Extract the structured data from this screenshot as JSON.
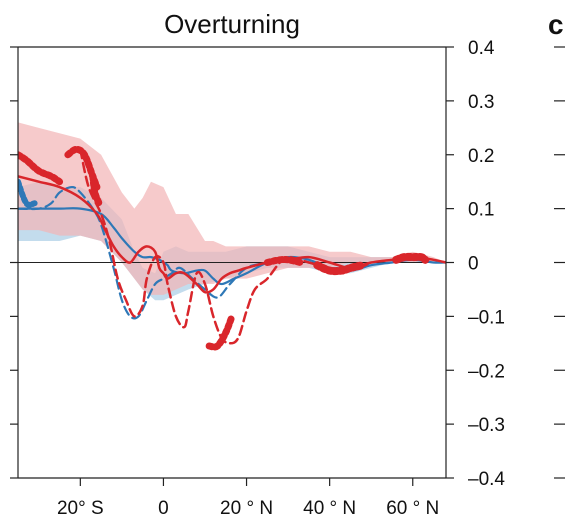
{
  "chart_data": {
    "type": "line",
    "title": "Overturning",
    "xlabel": "",
    "ylabel": "",
    "xlim": [
      -35,
      68
    ],
    "ylim": [
      -0.4,
      0.4
    ],
    "x_ticks": [
      {
        "value": -20,
        "label": "20° S"
      },
      {
        "value": 0,
        "label": "0"
      },
      {
        "value": 20,
        "label": "20 ° N"
      },
      {
        "value": 40,
        "label": "40 ° N"
      },
      {
        "value": 60,
        "label": "60 ° N"
      }
    ],
    "y_ticks": [
      {
        "value": 0.4,
        "label": "0.4"
      },
      {
        "value": 0.3,
        "label": "0.3"
      },
      {
        "value": 0.2,
        "label": "0.2"
      },
      {
        "value": 0.1,
        "label": "0.1"
      },
      {
        "value": 0,
        "label": "0"
      },
      {
        "value": -0.1,
        "label": "–0.1"
      },
      {
        "value": -0.2,
        "label": "–0.2"
      },
      {
        "value": -0.3,
        "label": "–0.3"
      },
      {
        "value": -0.4,
        "label": "–0.4"
      }
    ],
    "grid": false,
    "legend": false,
    "colors": {
      "red": "#d9262b",
      "blue": "#2e78b7",
      "red_band": "#f2b5b7",
      "blue_band": "#b9d6ea"
    },
    "bands": [
      {
        "color": "blue",
        "x": [
          -35,
          -30,
          -25,
          -20,
          -15,
          -10,
          -7,
          -5,
          -2,
          0,
          3,
          6,
          10,
          15,
          20,
          25,
          30,
          35,
          40,
          45,
          50,
          55,
          60,
          65,
          68
        ],
        "upper": [
          0.14,
          0.15,
          0.14,
          0.14,
          0.12,
          0.08,
          0.02,
          -0.01,
          -0.02,
          0.02,
          0.03,
          0.02,
          0.02,
          0.02,
          0.03,
          0.03,
          0.03,
          0.02,
          0.01,
          0.01,
          0.01,
          0.01,
          0.01,
          0.0,
          0.0
        ],
        "lower": [
          0.04,
          0.04,
          0.04,
          0.05,
          0.04,
          0.0,
          -0.03,
          -0.05,
          -0.07,
          -0.07,
          -0.06,
          -0.05,
          -0.04,
          -0.03,
          -0.02,
          -0.01,
          -0.01,
          -0.01,
          -0.02,
          -0.02,
          -0.01,
          0.0,
          0.0,
          0.0,
          0.0
        ]
      },
      {
        "color": "red",
        "x": [
          -35,
          -30,
          -25,
          -20,
          -15,
          -10,
          -7,
          -5,
          -3,
          0,
          3,
          6,
          10,
          12,
          15,
          20,
          25,
          30,
          35,
          40,
          45,
          50,
          55,
          60,
          65,
          68
        ],
        "upper": [
          0.26,
          0.25,
          0.24,
          0.23,
          0.2,
          0.13,
          0.1,
          0.12,
          0.15,
          0.14,
          0.09,
          0.09,
          0.04,
          0.04,
          0.03,
          0.03,
          0.03,
          0.03,
          0.03,
          0.02,
          0.02,
          0.01,
          0.01,
          0.02,
          0.01,
          0.0
        ],
        "lower": [
          0.06,
          0.06,
          0.05,
          0.05,
          0.04,
          0.0,
          -0.03,
          -0.05,
          -0.06,
          -0.06,
          -0.05,
          -0.04,
          -0.04,
          -0.04,
          -0.03,
          -0.03,
          -0.02,
          -0.01,
          -0.01,
          -0.01,
          0.0,
          0.0,
          0.0,
          0.0,
          0.0,
          0.0
        ]
      }
    ],
    "series": [
      {
        "color": "blue",
        "style": "solid",
        "width": 2.2,
        "x": [
          -35,
          -30,
          -25,
          -20,
          -15,
          -12,
          -10,
          -7,
          -5,
          -3,
          -1,
          0,
          1,
          2,
          5,
          8,
          10,
          12,
          14,
          17,
          20,
          25,
          30,
          35,
          40,
          45,
          50,
          55,
          60,
          65,
          68
        ],
        "y": [
          0.1,
          0.1,
          0.1,
          0.1,
          0.09,
          0.065,
          0.045,
          0.02,
          0.01,
          0.01,
          0.005,
          0.0,
          -0.005,
          -0.015,
          -0.02,
          -0.015,
          -0.015,
          -0.03,
          -0.04,
          -0.03,
          -0.02,
          0.0,
          0.01,
          0.005,
          -0.01,
          -0.015,
          -0.005,
          0.0,
          0.005,
          0.0,
          0.0
        ]
      },
      {
        "color": "blue",
        "style": "dashed",
        "width": 2.2,
        "x": [
          -35,
          -30,
          -27,
          -25,
          -22,
          -20,
          -17,
          -15,
          -12,
          -10,
          -8,
          -6,
          -4,
          -2,
          0,
          2,
          4,
          7,
          10,
          13,
          16,
          20,
          25,
          30,
          35,
          40,
          45,
          50
        ],
        "y": [
          0.1,
          0.1,
          0.11,
          0.13,
          0.14,
          0.13,
          0.1,
          0.07,
          -0.01,
          -0.07,
          -0.1,
          -0.1,
          -0.07,
          -0.04,
          -0.03,
          -0.02,
          -0.01,
          -0.03,
          -0.05,
          -0.065,
          -0.04,
          -0.01,
          0.0,
          0.01,
          0.0,
          -0.01,
          -0.01,
          -0.005
        ]
      },
      {
        "color": "blue",
        "style": "thick",
        "width": 6,
        "x": [
          -35,
          -33,
          -31
        ],
        "y": [
          0.15,
          0.11,
          0.11
        ]
      },
      {
        "color": "red",
        "style": "solid",
        "width": 2.5,
        "x": [
          -35,
          -30,
          -25,
          -20,
          -16,
          -14,
          -12,
          -10,
          -8,
          -6,
          -4,
          -2,
          -1,
          0,
          1,
          3,
          5,
          8,
          10,
          12,
          14,
          16,
          18,
          20,
          25,
          30,
          35,
          40,
          45,
          50,
          55,
          60,
          65,
          68
        ],
        "y": [
          0.16,
          0.15,
          0.14,
          0.12,
          0.09,
          0.06,
          0.03,
          0.01,
          0.0,
          0.02,
          0.03,
          0.02,
          -0.01,
          -0.02,
          -0.03,
          -0.02,
          -0.02,
          -0.04,
          -0.055,
          -0.05,
          -0.03,
          -0.02,
          -0.015,
          -0.01,
          0.0,
          0.005,
          0.01,
          0.0,
          -0.01,
          0.0,
          0.005,
          0.01,
          0.005,
          0.0
        ]
      },
      {
        "color": "red",
        "style": "dashed",
        "width": 2.5,
        "x": [
          -20,
          -18,
          -15,
          -13,
          -11,
          -9,
          -7,
          -5,
          -4,
          -2,
          0,
          1,
          3,
          5,
          6,
          8,
          10,
          12,
          14,
          16,
          18,
          20,
          22,
          25,
          28,
          30,
          35,
          40,
          45,
          50
        ],
        "y": [
          0.21,
          0.14,
          0.09,
          0.04,
          -0.03,
          -0.07,
          -0.1,
          -0.08,
          -0.03,
          0.01,
          0.0,
          -0.04,
          -0.1,
          -0.12,
          -0.09,
          -0.02,
          -0.04,
          -0.1,
          -0.14,
          -0.15,
          -0.14,
          -0.09,
          -0.05,
          -0.03,
          0.0,
          0.01,
          0.0,
          -0.01,
          -0.015,
          0.0
        ]
      },
      {
        "color": "red",
        "style": "thick",
        "width": 7,
        "x": [
          -35,
          -33,
          -30,
          -27,
          -25
        ],
        "y": [
          0.2,
          0.19,
          0.17,
          0.16,
          0.15
        ]
      },
      {
        "color": "red",
        "style": "thick",
        "width": 7,
        "x": [
          -23,
          -21,
          -19,
          -17,
          -16
        ],
        "y": [
          0.2,
          0.21,
          0.2,
          0.16,
          0.14
        ]
      },
      {
        "color": "red",
        "style": "thick",
        "width": 7,
        "x": [
          -17,
          -16.5,
          -15.5
        ],
        "y": [
          0.16,
          0.13,
          0.11
        ]
      },
      {
        "color": "red",
        "style": "thick",
        "width": 7,
        "x": [
          11,
          13,
          15,
          16.5
        ],
        "y": [
          -0.155,
          -0.155,
          -0.13,
          -0.1
        ]
      },
      {
        "color": "red",
        "style": "thick",
        "width": 7,
        "x": [
          25,
          28,
          30,
          33
        ],
        "y": [
          0.0,
          0.005,
          0.005,
          0.0
        ]
      },
      {
        "color": "red",
        "style": "thick",
        "width": 8,
        "x": [
          37,
          40,
          43,
          45,
          48
        ],
        "y": [
          -0.005,
          -0.015,
          -0.015,
          -0.01,
          -0.005
        ]
      },
      {
        "color": "red",
        "style": "thick",
        "width": 8,
        "x": [
          56,
          58,
          60,
          62,
          63
        ],
        "y": [
          0.005,
          0.01,
          0.01,
          0.01,
          0.005
        ]
      }
    ]
  },
  "panel_letter": "c"
}
